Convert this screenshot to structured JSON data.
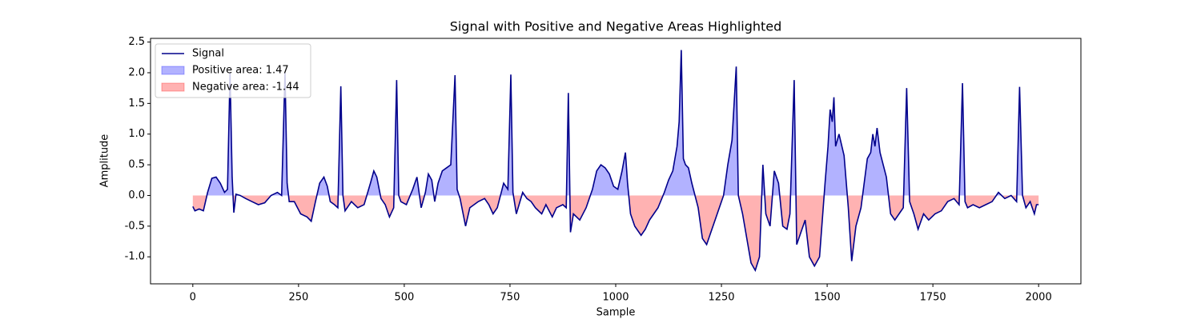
{
  "chart_data": {
    "type": "line",
    "title": "Signal with Positive and Negative Areas Highlighted",
    "xlabel": "Sample",
    "ylabel": "Amplitude",
    "x": [
      0,
      5,
      15,
      25,
      35,
      45,
      55,
      65,
      75,
      82,
      88,
      93,
      97,
      102,
      112,
      125,
      140,
      155,
      170,
      185,
      200,
      210,
      218,
      223,
      228,
      240,
      255,
      270,
      280,
      290,
      300,
      310,
      318,
      325,
      335,
      343,
      350,
      355,
      360,
      375,
      390,
      405,
      420,
      428,
      435,
      445,
      455,
      465,
      475,
      482,
      487,
      492,
      505,
      520,
      530,
      540,
      550,
      557,
      565,
      572,
      580,
      590,
      600,
      610,
      620,
      625,
      632,
      645,
      655,
      665,
      675,
      690,
      700,
      710,
      720,
      735,
      745,
      752,
      757,
      765,
      780,
      790,
      800,
      810,
      825,
      835,
      850,
      860,
      875,
      883,
      888,
      893,
      900,
      915,
      930,
      945,
      955,
      965,
      975,
      985,
      995,
      1005,
      1015,
      1023,
      1028,
      1035,
      1045,
      1060,
      1070,
      1080,
      1090,
      1100,
      1115,
      1125,
      1135,
      1145,
      1150,
      1155,
      1160,
      1165,
      1172,
      1180,
      1195,
      1205,
      1215,
      1225,
      1240,
      1255,
      1265,
      1275,
      1285,
      1290,
      1300,
      1310,
      1320,
      1330,
      1340,
      1348,
      1355,
      1365,
      1375,
      1385,
      1395,
      1405,
      1412,
      1422,
      1428,
      1438,
      1448,
      1458,
      1470,
      1482,
      1495,
      1502,
      1507,
      1512,
      1516,
      1520,
      1528,
      1540,
      1550,
      1558,
      1568,
      1580,
      1595,
      1603,
      1608,
      1613,
      1618,
      1625,
      1640,
      1650,
      1660,
      1670,
      1680,
      1688,
      1695,
      1705,
      1715,
      1728,
      1740,
      1755,
      1770,
      1785,
      1800,
      1812,
      1820,
      1826,
      1832,
      1845,
      1860,
      1875,
      1890,
      1905,
      1920,
      1935,
      1948,
      1955,
      1962,
      1970,
      1980,
      1990,
      1995,
      2000
    ],
    "series": [
      {
        "name": "Signal",
        "color": "#00008b",
        "values": [
          -0.18,
          -0.25,
          -0.22,
          -0.25,
          0.05,
          0.28,
          0.3,
          0.2,
          0.05,
          0.1,
          2.0,
          0.3,
          -0.28,
          0.02,
          0.0,
          -0.05,
          -0.1,
          -0.15,
          -0.12,
          0.0,
          0.05,
          0.0,
          2.0,
          0.2,
          -0.1,
          -0.1,
          -0.3,
          -0.35,
          -0.42,
          -0.1,
          0.2,
          0.3,
          0.15,
          -0.1,
          -0.15,
          -0.2,
          1.78,
          0.0,
          -0.25,
          -0.1,
          -0.2,
          -0.15,
          0.2,
          0.4,
          0.3,
          -0.05,
          -0.15,
          -0.35,
          -0.2,
          1.88,
          0.0,
          -0.1,
          -0.15,
          0.1,
          0.3,
          -0.2,
          0.05,
          0.35,
          0.25,
          -0.1,
          0.2,
          0.4,
          0.45,
          0.5,
          1.96,
          0.1,
          -0.05,
          -0.5,
          -0.2,
          -0.15,
          -0.1,
          -0.05,
          -0.15,
          -0.3,
          -0.2,
          0.2,
          0.1,
          1.97,
          0.05,
          -0.3,
          0.05,
          -0.05,
          -0.1,
          -0.2,
          -0.3,
          -0.15,
          -0.35,
          -0.2,
          -0.15,
          -0.2,
          1.67,
          -0.6,
          -0.3,
          -0.4,
          -0.2,
          0.1,
          0.4,
          0.5,
          0.45,
          0.35,
          0.15,
          0.1,
          0.4,
          0.7,
          0.2,
          -0.3,
          -0.5,
          -0.65,
          -0.55,
          -0.4,
          -0.3,
          -0.2,
          0.05,
          0.25,
          0.4,
          0.8,
          1.2,
          2.37,
          0.6,
          0.5,
          0.45,
          0.2,
          -0.2,
          -0.7,
          -0.8,
          -0.6,
          -0.3,
          0.0,
          0.5,
          0.9,
          2.1,
          0.0,
          -0.3,
          -0.7,
          -1.1,
          -1.22,
          -1.0,
          0.5,
          -0.3,
          -0.5,
          0.4,
          0.2,
          -0.5,
          -0.55,
          -0.3,
          1.88,
          -0.8,
          -0.6,
          -0.4,
          -1.0,
          -1.15,
          -1.0,
          0.2,
          0.8,
          1.4,
          1.2,
          1.6,
          0.8,
          1.0,
          0.65,
          -0.2,
          -1.07,
          -0.5,
          -0.2,
          0.6,
          0.7,
          1.0,
          0.8,
          1.1,
          0.7,
          0.3,
          -0.3,
          -0.4,
          -0.3,
          -0.2,
          1.75,
          -0.1,
          -0.3,
          -0.55,
          -0.3,
          -0.4,
          -0.3,
          -0.25,
          -0.1,
          -0.05,
          -0.15,
          1.83,
          -0.1,
          -0.2,
          -0.15,
          -0.2,
          -0.15,
          -0.1,
          0.05,
          -0.05,
          0.0,
          -0.1,
          1.77,
          0.0,
          -0.2,
          -0.1,
          -0.3,
          -0.15,
          -0.15
        ]
      }
    ],
    "areas": [
      {
        "name": "Positive area: 1.47",
        "color": "#0000ff",
        "side": "positive"
      },
      {
        "name": "Negative area: -1.44",
        "color": "#ff0000",
        "side": "negative"
      }
    ],
    "area_alpha": 0.3,
    "xlim": [
      -100,
      2100
    ],
    "xticks": [
      0,
      250,
      500,
      750,
      1000,
      1250,
      1500,
      1750,
      2000
    ],
    "ylim": [
      -1.44,
      2.56
    ],
    "yticks": [
      {
        "value": -1,
        "label": "-1.0"
      },
      -0.5,
      {
        "value": 0,
        "label": "0.0"
      },
      0.5,
      {
        "value": 1,
        "label": "1.0"
      },
      1.5,
      {
        "value": 2,
        "label": "2.0"
      },
      2.5
    ],
    "grid": false,
    "legend": "upper left"
  }
}
